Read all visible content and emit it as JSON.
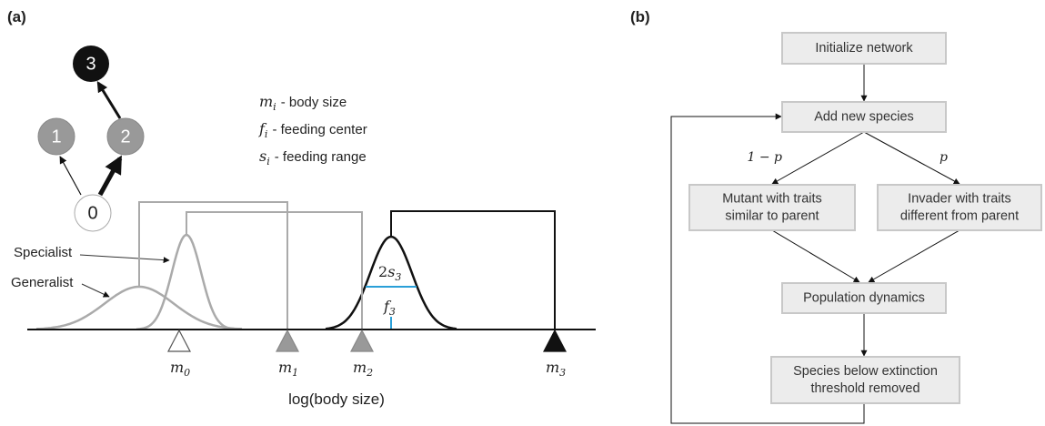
{
  "panel_a": {
    "label": "(a)",
    "nodes": [
      "3",
      "1",
      "2",
      "0"
    ],
    "legend": [
      {
        "symbol": "m",
        "subscript": "i",
        "text": "- body size"
      },
      {
        "symbol": "f",
        "subscript": "i",
        "text": "- feeding center"
      },
      {
        "symbol": "s",
        "subscript": "i",
        "text": "- feeding range"
      }
    ],
    "specialist": "Specialist",
    "generalist": "Generalist",
    "width_label": {
      "prefix": "2",
      "symbol": "s",
      "subscript": "3"
    },
    "center_label": {
      "symbol": "f",
      "subscript": "3"
    },
    "markers": [
      {
        "symbol": "m",
        "subscript": "0"
      },
      {
        "symbol": "m",
        "subscript": "1"
      },
      {
        "symbol": "m",
        "subscript": "2"
      },
      {
        "symbol": "m",
        "subscript": "3"
      }
    ],
    "axis_label": "log(body size)"
  },
  "panel_b": {
    "label": "(b)",
    "boxes": [
      {
        "lines": [
          "Initialize network"
        ]
      },
      {
        "lines": [
          "Add new species"
        ]
      },
      {
        "lines": [
          "Mutant with traits",
          "similar to parent"
        ]
      },
      {
        "lines": [
          "Invader with traits",
          "different from parent"
        ]
      },
      {
        "lines": [
          "Population dynamics"
        ]
      },
      {
        "lines": [
          "Species below extinction",
          "threshold removed"
        ]
      }
    ],
    "branch_labels": [
      "1 − p",
      "p"
    ]
  }
}
